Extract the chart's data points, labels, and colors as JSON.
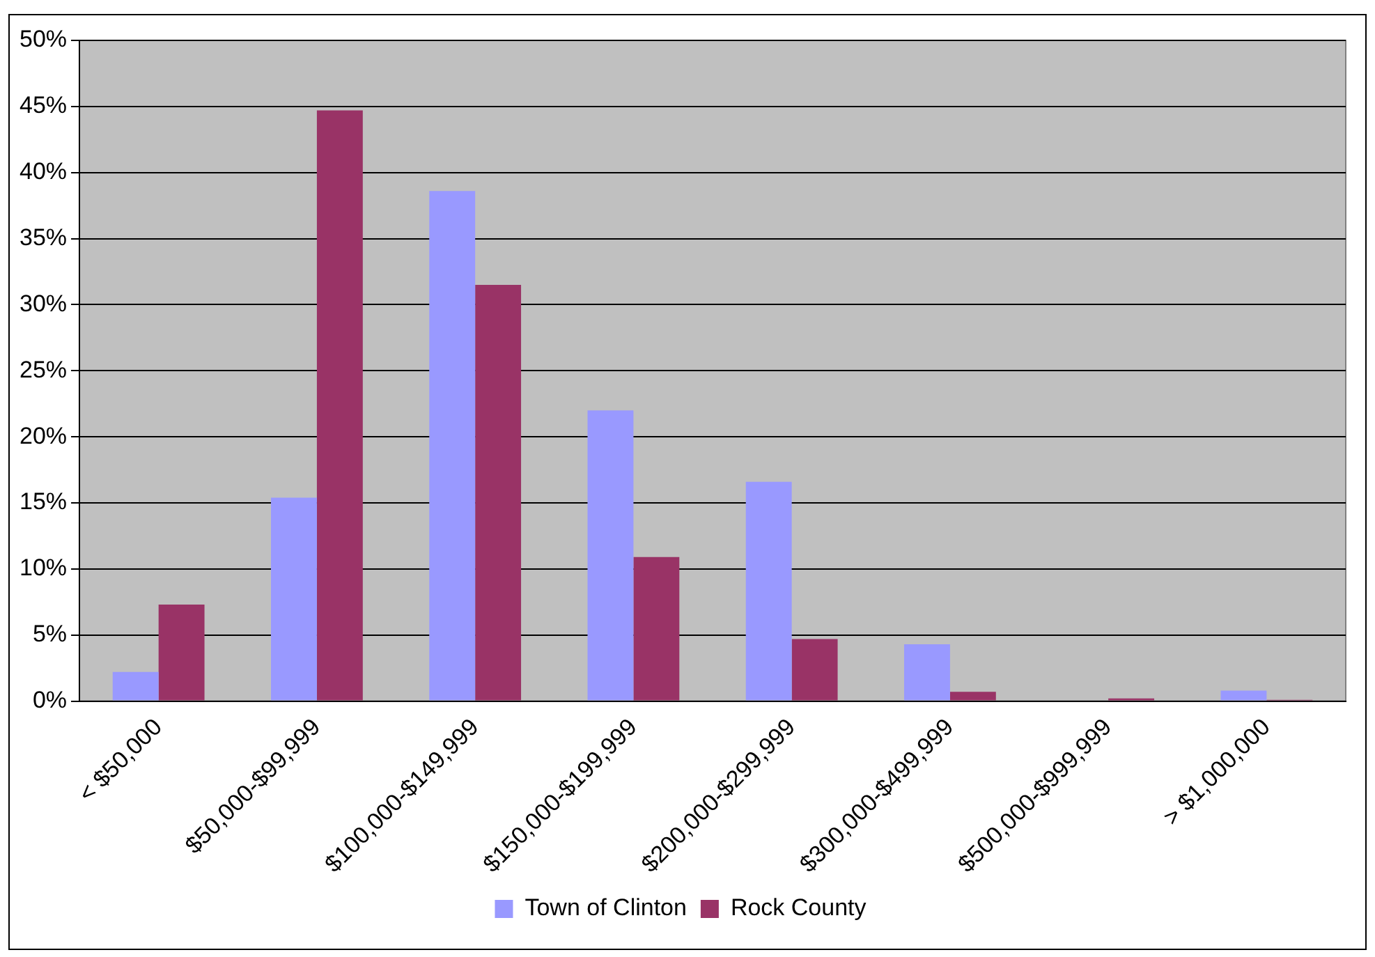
{
  "chart_data": {
    "type": "bar",
    "categories": [
      "< $50,000",
      "$50,000-$99,999",
      "$100,000-$149,999",
      "$150,000-$199,999",
      "$200,000-$299,999",
      "$300,000-$499,999",
      "$500,000-$999,999",
      "> $1,000,000"
    ],
    "series": [
      {
        "name": "Town of Clinton",
        "color": "#9999ff",
        "values": [
          2.2,
          15.4,
          38.6,
          22.0,
          16.6,
          4.3,
          0,
          0.8
        ]
      },
      {
        "name": "Rock County",
        "color": "#993366",
        "values": [
          7.3,
          44.7,
          31.5,
          10.9,
          4.7,
          0.7,
          0.2,
          0.1
        ]
      }
    ],
    "ylim": [
      0,
      50
    ],
    "yticks": [
      {
        "value": 0,
        "label": "0%"
      },
      {
        "value": 5,
        "label": "5%"
      },
      {
        "value": 10,
        "label": "10%"
      },
      {
        "value": 15,
        "label": "15%"
      },
      {
        "value": 20,
        "label": "20%"
      },
      {
        "value": 25,
        "label": "25%"
      },
      {
        "value": 30,
        "label": "30%"
      },
      {
        "value": 35,
        "label": "35%"
      },
      {
        "value": 40,
        "label": "40%"
      },
      {
        "value": 45,
        "label": "45%"
      },
      {
        "value": 50,
        "label": "50%"
      }
    ],
    "grid": "y",
    "legend": "bottom"
  }
}
